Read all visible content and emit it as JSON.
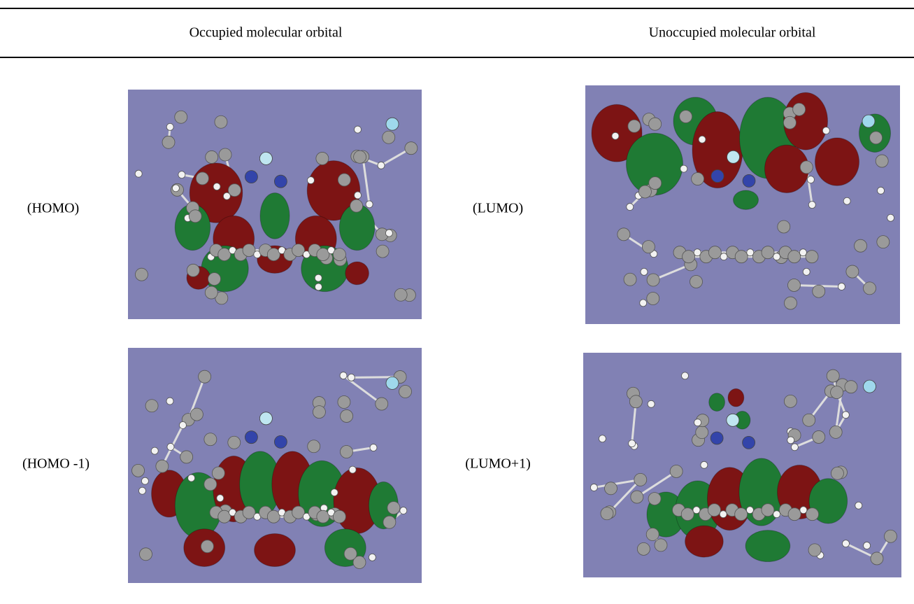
{
  "header": {
    "columns": [
      "Occupied molecular orbital",
      "Unoccupied molecular orbital"
    ]
  },
  "table": {
    "rows": [
      [
        "(HOMO)",
        "(LUMO)"
      ],
      [
        "(HOMO -1)",
        "(LUMO+1)"
      ]
    ]
  }
}
